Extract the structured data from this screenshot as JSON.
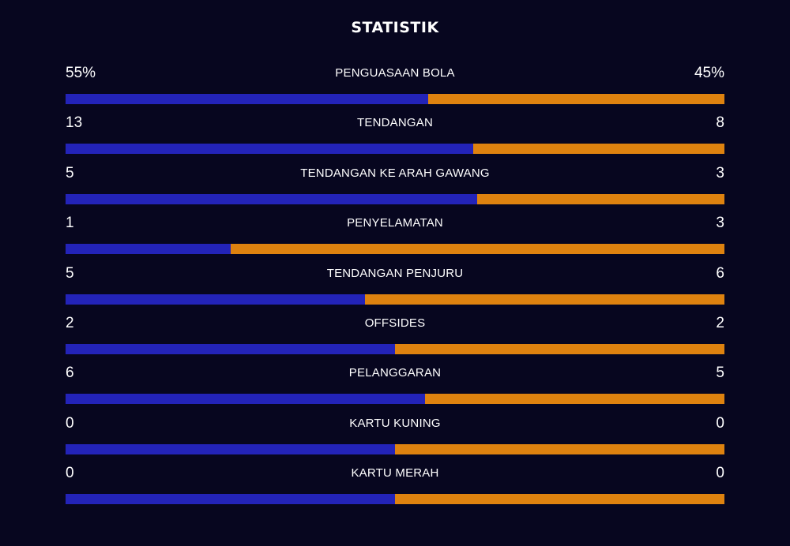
{
  "title": "STATISTIK",
  "colors": {
    "background": "#07061f",
    "home": "#2323b8",
    "away": "#de820f"
  },
  "stats": [
    {
      "label": "PENGUASAAN BOLA",
      "home": "55%",
      "away": "45%",
      "home_share": 0.55
    },
    {
      "label": "TENDANGAN",
      "home": "13",
      "away": "8",
      "home_share": 0.619
    },
    {
      "label": "TENDANGAN KE ARAH GAWANG",
      "home": "5",
      "away": "3",
      "home_share": 0.625
    },
    {
      "label": "PENYELAMATAN",
      "home": "1",
      "away": "3",
      "home_share": 0.25
    },
    {
      "label": "TENDANGAN PENJURU",
      "home": "5",
      "away": "6",
      "home_share": 0.455
    },
    {
      "label": "OFFSIDES",
      "home": "2",
      "away": "2",
      "home_share": 0.5
    },
    {
      "label": "PELANGGARAN",
      "home": "6",
      "away": "5",
      "home_share": 0.545
    },
    {
      "label": "KARTU KUNING",
      "home": "0",
      "away": "0",
      "home_share": 0.5
    },
    {
      "label": "KARTU MERAH",
      "home": "0",
      "away": "0",
      "home_share": 0.5
    }
  ]
}
